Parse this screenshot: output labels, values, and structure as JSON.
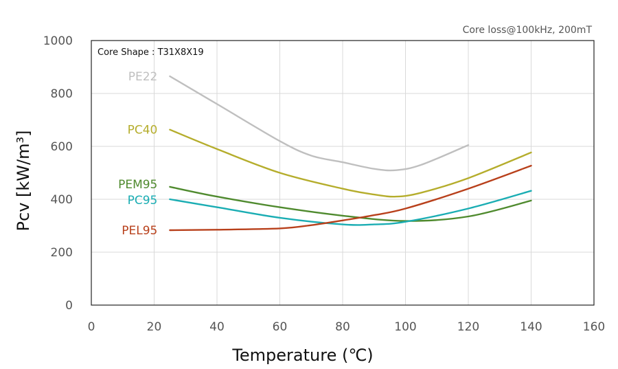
{
  "chart_data": {
    "type": "line",
    "corner_note": "Core loss@100kHz, 200mT",
    "shape_note": "Core Shape : T31X8X19",
    "xlabel": "Temperature (℃)",
    "ylabel": "Pcv [kW/m³]",
    "xlim": [
      0,
      160
    ],
    "ylim": [
      0,
      1000
    ],
    "x_ticks": [
      "0",
      "20",
      "40",
      "60",
      "80",
      "100",
      "120",
      "140",
      "160"
    ],
    "y_ticks": [
      "0",
      "200",
      "400",
      "600",
      "800",
      "1000"
    ],
    "grid": true,
    "series": [
      {
        "name": "PE22",
        "color": "#bfbfbf",
        "x": [
          25,
          40,
          60,
          70,
          80,
          90,
          97,
          105,
          120
        ],
        "y": [
          865,
          760,
          620,
          565,
          540,
          515,
          510,
          530,
          605
        ]
      },
      {
        "name": "PC40",
        "color": "#b5ad2c",
        "x": [
          25,
          40,
          60,
          80,
          90,
          97,
          105,
          120,
          140
        ],
        "y": [
          663,
          590,
          500,
          440,
          418,
          410,
          425,
          480,
          577
        ]
      },
      {
        "name": "PEM95",
        "color": "#4f8a2e",
        "x": [
          25,
          40,
          60,
          80,
          100,
          120,
          140
        ],
        "y": [
          447,
          410,
          370,
          338,
          318,
          335,
          395
        ]
      },
      {
        "name": "PC95",
        "color": "#1aadb3",
        "x": [
          25,
          40,
          60,
          80,
          90,
          100,
          120,
          140
        ],
        "y": [
          400,
          370,
          330,
          305,
          305,
          315,
          365,
          432
        ]
      },
      {
        "name": "PEL95",
        "color": "#b8401b",
        "x": [
          25,
          40,
          60,
          70,
          80,
          90,
          100,
          120,
          140
        ],
        "y": [
          283,
          285,
          290,
          302,
          320,
          340,
          365,
          440,
          527
        ]
      }
    ]
  }
}
